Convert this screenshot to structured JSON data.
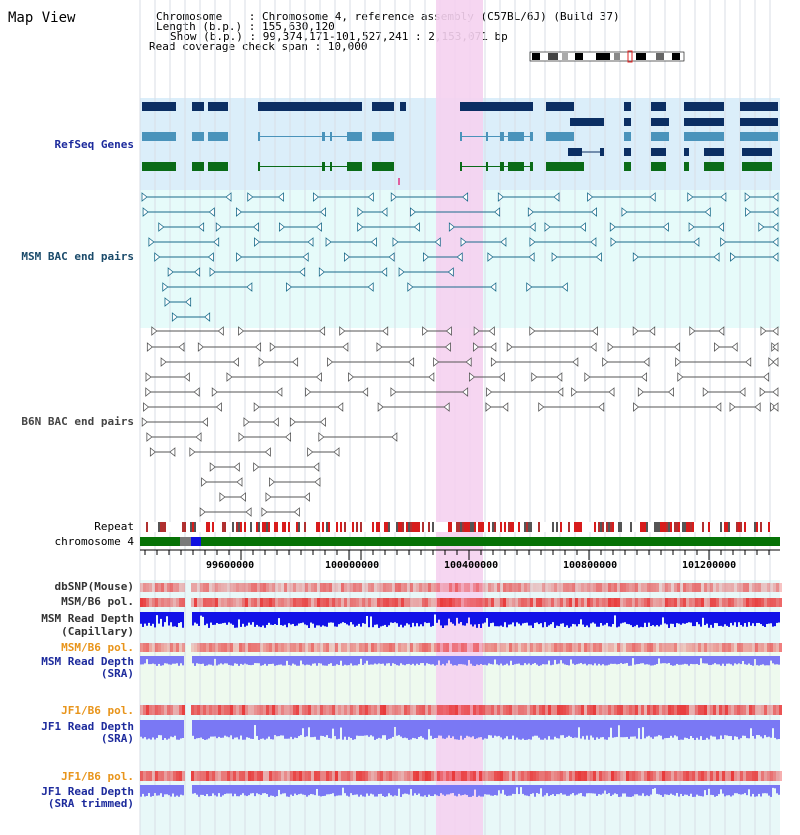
{
  "title": "Map View",
  "info": {
    "chromosome_line": "Chromosome    : Chromosome 4, reference assembly (C57BL/6J) (Build 37)",
    "length_line": "Length (b.p.) : 155,630,120",
    "show_line": "Show (b.p.) : 99,374,171-101,527,241 : 2,153,071 bp",
    "coverage_line": "Read coverage check span : 10,000"
  },
  "tracks": {
    "refseq": "RefSeq Genes",
    "msm_bac": "MSM BAC end pairs",
    "b6n_bac": "B6N BAC end pairs",
    "repeat": "Repeat",
    "chromosome": "chromosome 4",
    "dbsnp": "dbSNP(Mouse)",
    "msm_b6_pol_1": "MSM/B6 pol.",
    "msm_read_depth_cap_1": "MSM Read Depth",
    "msm_read_depth_cap_2": "(Capillary)",
    "msm_b6_pol_2": "MSM/B6 pol.",
    "msm_read_depth_sra_1": "MSM Read Depth",
    "msm_read_depth_sra_2": "(SRA)",
    "jf1_b6_pol_1": "JF1/B6 pol.",
    "jf1_read_depth_sra_1": "JF1 Read Depth",
    "jf1_read_depth_sra_2": "(SRA)",
    "jf1_b6_pol_2": "JF1/B6 pol.",
    "jf1_read_depth_trim_1": "JF1 Read Depth",
    "jf1_read_depth_trim_2": "(SRA trimmed)"
  },
  "axis_ticks": [
    "99600000",
    "100000000",
    "100400000",
    "100800000",
    "101200000"
  ],
  "colors": {
    "refseq_bg": "#dbeefa",
    "msm_bg": "#e6fbfa",
    "highlight": "#f5d2ef",
    "dark_blue_gene": "#0b2e63",
    "light_blue_gene": "#4a93bb",
    "green_gene": "#0a6b18",
    "bac_teal": "#1a6a8a",
    "bac_gray": "#555555",
    "chromosome_green": "#067206",
    "depth_blue": "#1212e8",
    "depth_light_blue": "#7a78f4",
    "pol_red": "#e83030"
  }
}
